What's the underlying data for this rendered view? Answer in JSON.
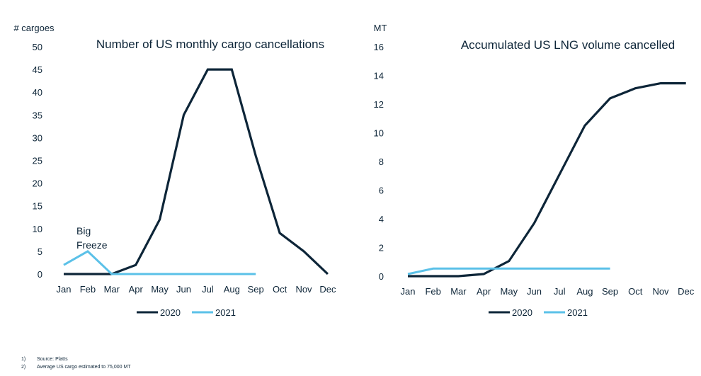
{
  "chart_data": [
    {
      "type": "line",
      "title": "Number of US monthly cargo cancellations",
      "ylabel": "# cargoes",
      "xlabel": "",
      "categories": [
        "Jan",
        "Feb",
        "Mar",
        "Apr",
        "May",
        "Jun",
        "Jul",
        "Aug",
        "Sep",
        "Oct",
        "Nov",
        "Dec"
      ],
      "ylim": [
        0,
        50
      ],
      "yticks": [
        0,
        5,
        10,
        15,
        20,
        25,
        30,
        35,
        40,
        45,
        50
      ],
      "grid": false,
      "legend": "bottom",
      "series": [
        {
          "name": "2020",
          "color": "#0d2538",
          "values": [
            0,
            0,
            0,
            2,
            12,
            35,
            45,
            45,
            26,
            9,
            5,
            0
          ]
        },
        {
          "name": "2021",
          "color": "#5bc1e8",
          "values": [
            2,
            5,
            0,
            0,
            0,
            0,
            0,
            0,
            0,
            null,
            null,
            null
          ]
        }
      ],
      "annotations": [
        {
          "text_lines": [
            "Big",
            "Freeze"
          ]
        }
      ]
    },
    {
      "type": "line",
      "title": "Accumulated US LNG volume cancelled",
      "ylabel": "MT",
      "xlabel": "",
      "categories": [
        "Jan",
        "Feb",
        "Mar",
        "Apr",
        "May",
        "Jun",
        "Jul",
        "Aug",
        "Sep",
        "Oct",
        "Nov",
        "Dec"
      ],
      "ylim": [
        0,
        16
      ],
      "yticks": [
        0,
        2,
        4,
        6,
        8,
        10,
        12,
        14,
        16
      ],
      "grid": false,
      "legend": "bottom",
      "series": [
        {
          "name": "2020",
          "color": "#0d2538",
          "values": [
            0,
            0,
            0,
            0.15,
            1.05,
            3.7,
            7.1,
            10.5,
            12.4,
            13.1,
            13.45,
            13.45
          ]
        },
        {
          "name": "2021",
          "color": "#5bc1e8",
          "values": [
            0.15,
            0.53,
            0.53,
            0.53,
            0.53,
            0.53,
            0.53,
            0.53,
            0.53,
            null,
            null,
            null
          ]
        }
      ]
    }
  ],
  "footnotes": [
    {
      "num": "1)",
      "text": "Source: Platts"
    },
    {
      "num": "2)",
      "text": "Average US cargo estimated to 75,000 MT"
    }
  ]
}
